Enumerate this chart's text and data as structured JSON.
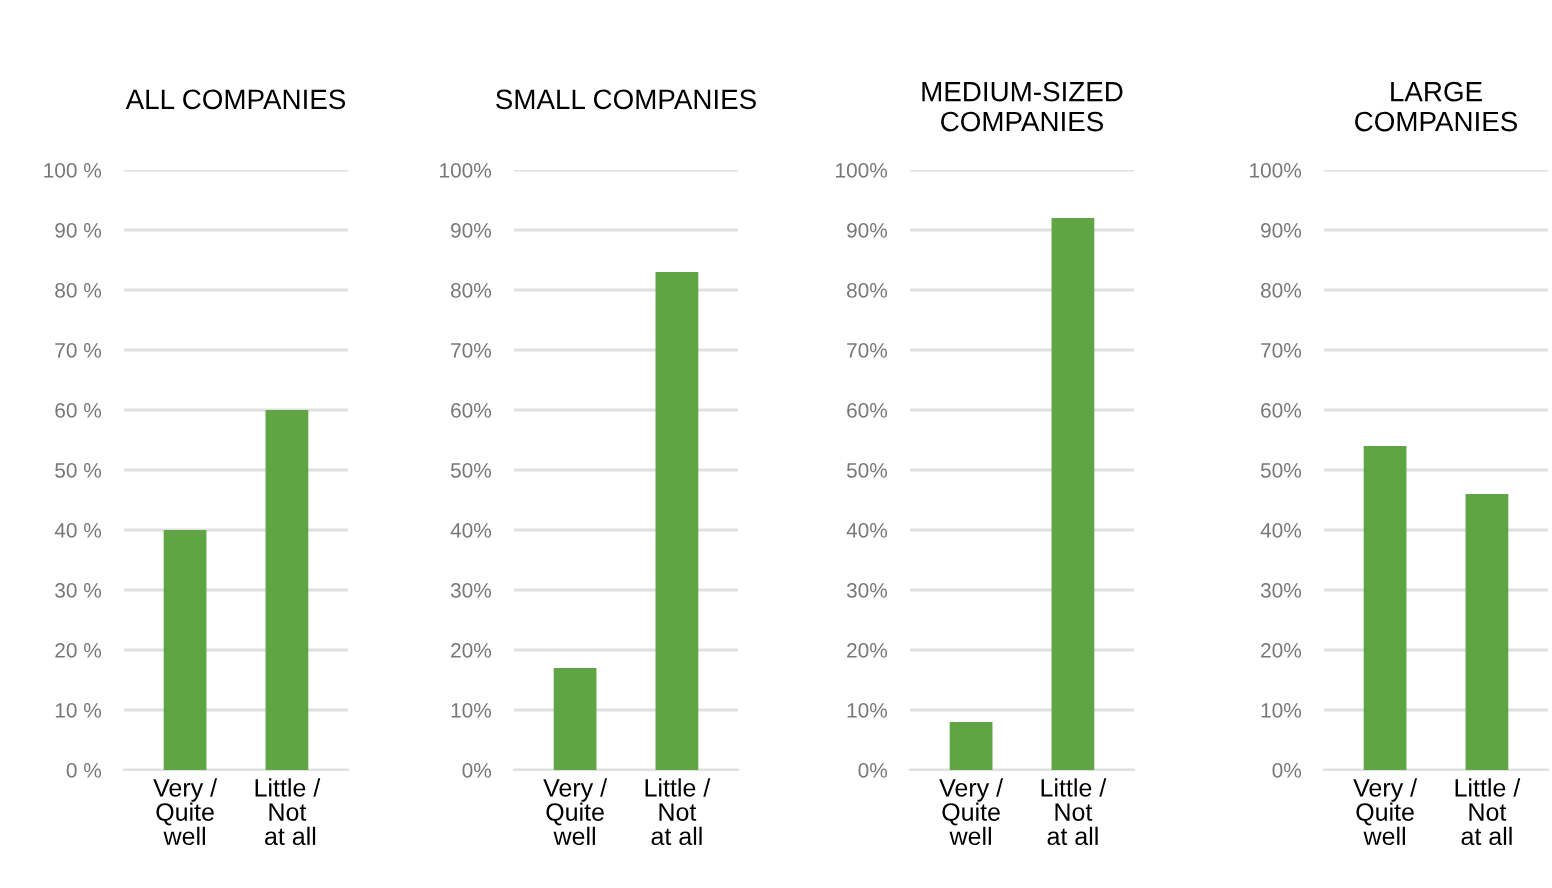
{
  "chart_data": [
    {
      "type": "bar",
      "title": "ALL COMPANIES",
      "categories": [
        "Very /\nQuite\nwell",
        "Little /\nNot\n at all"
      ],
      "values": [
        40,
        60
      ],
      "color": "#5fa544",
      "ylim": [
        0,
        100
      ],
      "yticks": [
        {
          "value": 0,
          "label": "0 %"
        },
        {
          "value": 10,
          "label": "10 %"
        },
        {
          "value": 20,
          "label": "20 %"
        },
        {
          "value": 30,
          "label": "30 %"
        },
        {
          "value": 40,
          "label": "40 %"
        },
        {
          "value": 50,
          "label": "50 %"
        },
        {
          "value": 60,
          "label": "60 %"
        },
        {
          "value": 70,
          "label": "70 %"
        },
        {
          "value": 80,
          "label": "80 %"
        },
        {
          "value": 90,
          "label": "90 %"
        },
        {
          "value": 100,
          "label": "100 %"
        }
      ],
      "grid": "y"
    },
    {
      "type": "bar",
      "title": "SMALL COMPANIES",
      "categories": [
        "Very /\nQuite\nwell",
        "Little /\nNot\nat all"
      ],
      "values": [
        17,
        83
      ],
      "color": "#5fa544",
      "ylim": [
        0,
        100
      ],
      "yticks": [
        {
          "value": 0,
          "label": "0%"
        },
        {
          "value": 10,
          "label": "10%"
        },
        {
          "value": 20,
          "label": "20%"
        },
        {
          "value": 30,
          "label": "30%"
        },
        {
          "value": 40,
          "label": "40%"
        },
        {
          "value": 50,
          "label": "50%"
        },
        {
          "value": 60,
          "label": "60%"
        },
        {
          "value": 70,
          "label": "70%"
        },
        {
          "value": 80,
          "label": "80%"
        },
        {
          "value": 90,
          "label": "90%"
        },
        {
          "value": 100,
          "label": "100%"
        }
      ],
      "grid": "y"
    },
    {
      "type": "bar",
      "title": "MEDIUM-SIZED\nCOMPANIES",
      "categories": [
        "Very /\nQuite\nwell",
        "Little /\nNot\nat all"
      ],
      "values": [
        8,
        92
      ],
      "color": "#5fa544",
      "ylim": [
        0,
        100
      ],
      "yticks": [
        {
          "value": 0,
          "label": "0%"
        },
        {
          "value": 10,
          "label": "10%"
        },
        {
          "value": 20,
          "label": "20%"
        },
        {
          "value": 30,
          "label": "30%"
        },
        {
          "value": 40,
          "label": "40%"
        },
        {
          "value": 50,
          "label": "50%"
        },
        {
          "value": 60,
          "label": "60%"
        },
        {
          "value": 70,
          "label": "70%"
        },
        {
          "value": 80,
          "label": "80%"
        },
        {
          "value": 90,
          "label": "90%"
        },
        {
          "value": 100,
          "label": "100%"
        }
      ],
      "grid": "y"
    },
    {
      "type": "bar",
      "title": "LARGE\nCOMPANIES",
      "categories": [
        "Very /\nQuite\nwell",
        "Little /\nNot\nat all"
      ],
      "values": [
        54,
        46
      ],
      "color": "#5fa544",
      "ylim": [
        0,
        100
      ],
      "yticks": [
        {
          "value": 0,
          "label": "0%"
        },
        {
          "value": 10,
          "label": "10%"
        },
        {
          "value": 20,
          "label": "20%"
        },
        {
          "value": 30,
          "label": "30%"
        },
        {
          "value": 40,
          "label": "40%"
        },
        {
          "value": 50,
          "label": "50%"
        },
        {
          "value": 60,
          "label": "60%"
        },
        {
          "value": 70,
          "label": "70%"
        },
        {
          "value": 80,
          "label": "80%"
        },
        {
          "value": 90,
          "label": "90%"
        },
        {
          "value": 100,
          "label": "100%"
        }
      ],
      "grid": "y"
    }
  ]
}
